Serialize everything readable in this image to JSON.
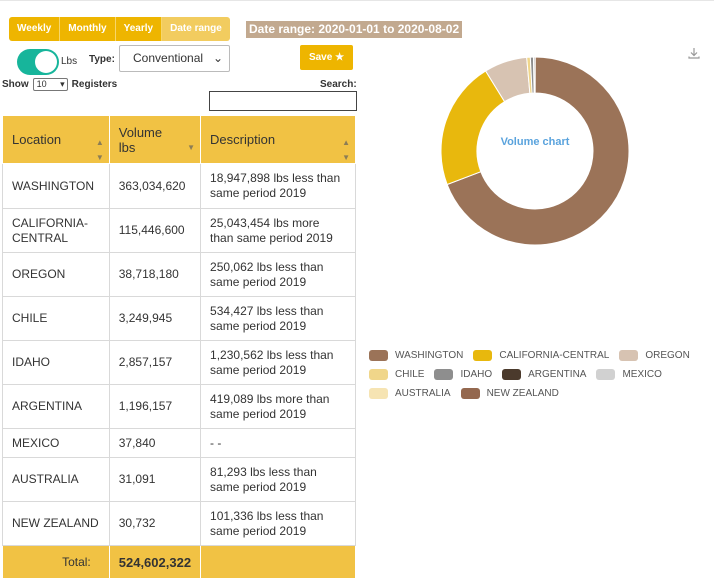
{
  "range_buttons": [
    {
      "label": "Weekly",
      "active": false
    },
    {
      "label": "Monthly",
      "active": false
    },
    {
      "label": "Yearly",
      "active": false
    },
    {
      "label": "Date range",
      "active": true
    }
  ],
  "date_range_label": "Date range: 2020-01-01 to 2020-08-02",
  "unit_toggle": {
    "label": "Lbs",
    "on": true
  },
  "type_filter": {
    "label": "Type:",
    "value": "Conventional"
  },
  "save_label": "Save ★",
  "show": {
    "prefix": "Show",
    "value": "10",
    "suffix": "Registers"
  },
  "search": {
    "label": "Search:",
    "value": ""
  },
  "table": {
    "headers": [
      "Location",
      "Volume lbs",
      "Description"
    ],
    "rows": [
      {
        "location": "WASHINGTON",
        "volume": "363,034,620",
        "description": "18,947,898 lbs less than same period 2019"
      },
      {
        "location": "CALIFORNIA-CENTRAL",
        "volume": "115,446,600",
        "description": "25,043,454 lbs more than same period 2019"
      },
      {
        "location": "OREGON",
        "volume": "38,718,180",
        "description": "250,062 lbs less than same period 2019"
      },
      {
        "location": "CHILE",
        "volume": "3,249,945",
        "description": "534,427 lbs less than same period 2019"
      },
      {
        "location": "IDAHO",
        "volume": "2,857,157",
        "description": "1,230,562 lbs less than same period 2019"
      },
      {
        "location": "ARGENTINA",
        "volume": "1,196,157",
        "description": "419,089 lbs more than same period 2019"
      },
      {
        "location": "MEXICO",
        "volume": "37,840",
        "description": "- -"
      },
      {
        "location": "AUSTRALIA",
        "volume": "31,091",
        "description": "81,293 lbs less than same period 2019"
      },
      {
        "location": "NEW ZEALAND",
        "volume": "30,732",
        "description": "101,336 lbs less than same period 2019"
      }
    ],
    "total_label": "Total:",
    "total_value": "524,602,322"
  },
  "chart_data": {
    "type": "pie",
    "title": "Volume chart",
    "categories": [
      "WASHINGTON",
      "CALIFORNIA-CENTRAL",
      "OREGON",
      "CHILE",
      "IDAHO",
      "ARGENTINA",
      "MEXICO",
      "AUSTRALIA",
      "NEW ZEALAND"
    ],
    "values": [
      363034620,
      115446600,
      38718180,
      3249945,
      2857157,
      1196157,
      37840,
      31091,
      30732
    ],
    "colors": [
      "#9b7358",
      "#e8b80d",
      "#d7c3b2",
      "#f0d68a",
      "#8e8e8e",
      "#4b3a2c",
      "#d1d1d1",
      "#f6e4b3",
      "#94684f"
    ],
    "legend_position": "bottom"
  }
}
